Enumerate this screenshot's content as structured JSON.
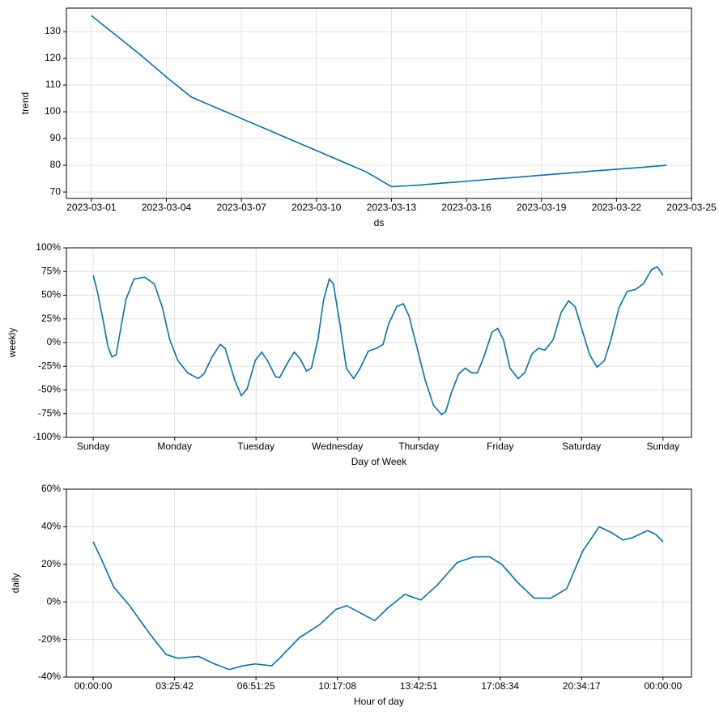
{
  "chart_data": [
    {
      "type": "line",
      "x_label": "ds",
      "y_label": "trend",
      "color": "#0072B2",
      "grid": true,
      "x": [
        "2023-03-01",
        "2023-03-02",
        "2023-03-03",
        "2023-03-04",
        "2023-03-05",
        "2023-03-06",
        "2023-03-07",
        "2023-03-08",
        "2023-03-09",
        "2023-03-10",
        "2023-03-11",
        "2023-03-12",
        "2023-03-13",
        "2023-03-14",
        "2023-03-15",
        "2023-03-16",
        "2023-03-17",
        "2023-03-18",
        "2023-03-19",
        "2023-03-20",
        "2023-03-21",
        "2023-03-22",
        "2023-03-23",
        "2023-03-24"
      ],
      "values": [
        136,
        128.5,
        121,
        113,
        105.5,
        101.5,
        97.5,
        93.5,
        89.5,
        85.5,
        81.5,
        77.5,
        72,
        72.5,
        73.3,
        74,
        74.8,
        75.5,
        76.3,
        77,
        77.8,
        78.5,
        79.2,
        80
      ],
      "xlim": [
        "2023-02-28",
        "2023-03-25"
      ],
      "xticks": [
        "2023-03-01",
        "2023-03-04",
        "2023-03-07",
        "2023-03-10",
        "2023-03-13",
        "2023-03-16",
        "2023-03-19",
        "2023-03-22",
        "2023-03-25"
      ],
      "ylim": [
        67.6,
        138.8
      ],
      "yticks": [
        70,
        80,
        90,
        100,
        110,
        120,
        130
      ]
    },
    {
      "type": "line",
      "x_label": "Day of Week",
      "y_label": "weekly",
      "color": "#0072B2",
      "grid": true,
      "x": [
        0,
        0.05,
        0.12,
        0.18,
        0.23,
        0.28,
        0.33,
        0.4,
        0.5,
        0.63,
        0.75,
        0.85,
        0.94,
        1.04,
        1.16,
        1.29,
        1.36,
        1.46,
        1.56,
        1.62,
        1.74,
        1.82,
        1.89,
        1.99,
        2.07,
        2.14,
        2.24,
        2.29,
        2.39,
        2.47,
        2.54,
        2.62,
        2.68,
        2.76,
        2.83,
        2.9,
        2.95,
        3.03,
        3.11,
        3.2,
        3.28,
        3.38,
        3.48,
        3.56,
        3.63,
        3.73,
        3.81,
        3.88,
        3.98,
        4.08,
        4.18,
        4.28,
        4.33,
        4.4,
        4.49,
        4.57,
        4.65,
        4.72,
        4.8,
        4.9,
        4.97,
        5.04,
        5.12,
        5.22,
        5.3,
        5.39,
        5.47,
        5.55,
        5.65,
        5.75,
        5.84,
        5.92,
        6.0,
        6.1,
        6.19,
        6.28,
        6.36,
        6.46,
        6.56,
        6.66,
        6.76,
        6.86,
        6.93,
        7.0
      ],
      "values": [
        71,
        54,
        24,
        -4,
        -15,
        -13,
        11,
        45,
        67,
        69,
        62,
        37,
        3,
        -19,
        -32,
        -38,
        -33,
        -15,
        -2,
        -6,
        -40,
        -56,
        -49,
        -19,
        -10,
        -19,
        -36,
        -37,
        -21,
        -10,
        -17,
        -30,
        -27,
        3,
        45,
        67,
        62,
        20,
        -27,
        -38,
        -27,
        -9,
        -6,
        -2,
        20,
        38,
        41,
        28,
        -6,
        -40,
        -66,
        -76,
        -73,
        -53,
        -33,
        -27,
        -32,
        -32,
        -15,
        11,
        15,
        3,
        -27,
        -38,
        -32,
        -12,
        -6,
        -8,
        3,
        32,
        44,
        38,
        15,
        -13,
        -26,
        -19,
        3,
        37,
        54,
        56,
        62,
        77,
        80,
        71
      ],
      "xlim": [
        -0.33,
        7.35
      ],
      "xticks": [
        {
          "value": 0,
          "label": "Sunday"
        },
        {
          "value": 1,
          "label": "Monday"
        },
        {
          "value": 2,
          "label": "Tuesday"
        },
        {
          "value": 3,
          "label": "Wednesday"
        },
        {
          "value": 4,
          "label": "Thursday"
        },
        {
          "value": 5,
          "label": "Friday"
        },
        {
          "value": 6,
          "label": "Saturday"
        },
        {
          "value": 7,
          "label": "Sunday"
        }
      ],
      "ylim": [
        -100,
        100
      ],
      "yticks": [
        {
          "value": -100,
          "label": "-100%"
        },
        {
          "value": -75,
          "label": "-75%"
        },
        {
          "value": -50,
          "label": "-50%"
        },
        {
          "value": -25,
          "label": "-25%"
        },
        {
          "value": 0,
          "label": "0%"
        },
        {
          "value": 25,
          "label": "25%"
        },
        {
          "value": 50,
          "label": "50%"
        },
        {
          "value": 75,
          "label": "75%"
        },
        {
          "value": 100,
          "label": "100%"
        }
      ]
    },
    {
      "type": "line",
      "x_label": "Hour of day",
      "y_label": "daily",
      "color": "#0072B2",
      "grid": true,
      "x": [
        0,
        0.014,
        0.036,
        0.064,
        0.085,
        0.107,
        0.128,
        0.149,
        0.185,
        0.213,
        0.239,
        0.263,
        0.284,
        0.313,
        0.327,
        0.362,
        0.398,
        0.426,
        0.445,
        0.476,
        0.494,
        0.518,
        0.547,
        0.575,
        0.604,
        0.639,
        0.668,
        0.696,
        0.717,
        0.746,
        0.774,
        0.803,
        0.831,
        0.859,
        0.888,
        0.909,
        0.93,
        0.945,
        0.973,
        0.987,
        1.0
      ],
      "values": [
        32,
        23,
        8,
        -2,
        -11,
        -20,
        -28,
        -30,
        -29,
        -33,
        -36,
        -34,
        -33,
        -34,
        -30,
        -19,
        -12,
        -4,
        -2,
        -7,
        -10,
        -3,
        4,
        1,
        9,
        21,
        24,
        24,
        20,
        10,
        2,
        2,
        7,
        27,
        40,
        37,
        33,
        34,
        38,
        36,
        32
      ],
      "xlim": [
        -0.047,
        1.05
      ],
      "xticks": [
        {
          "value": 0,
          "label": "00:00:00"
        },
        {
          "value": 0.142857,
          "label": "03:25:42"
        },
        {
          "value": 0.285714,
          "label": "06:51:25"
        },
        {
          "value": 0.428571,
          "label": "10:17:08"
        },
        {
          "value": 0.571429,
          "label": "13:42:51"
        },
        {
          "value": 0.714286,
          "label": "17:08:34"
        },
        {
          "value": 0.857143,
          "label": "20:34:17"
        },
        {
          "value": 1,
          "label": "00:00:00"
        }
      ],
      "ylim": [
        -40,
        60
      ],
      "yticks": [
        {
          "value": -40,
          "label": "-40%"
        },
        {
          "value": -20,
          "label": "-20%"
        },
        {
          "value": 0,
          "label": "0%"
        },
        {
          "value": 20,
          "label": "20%"
        },
        {
          "value": 40,
          "label": "40%"
        },
        {
          "value": 60,
          "label": "60%"
        }
      ]
    }
  ]
}
